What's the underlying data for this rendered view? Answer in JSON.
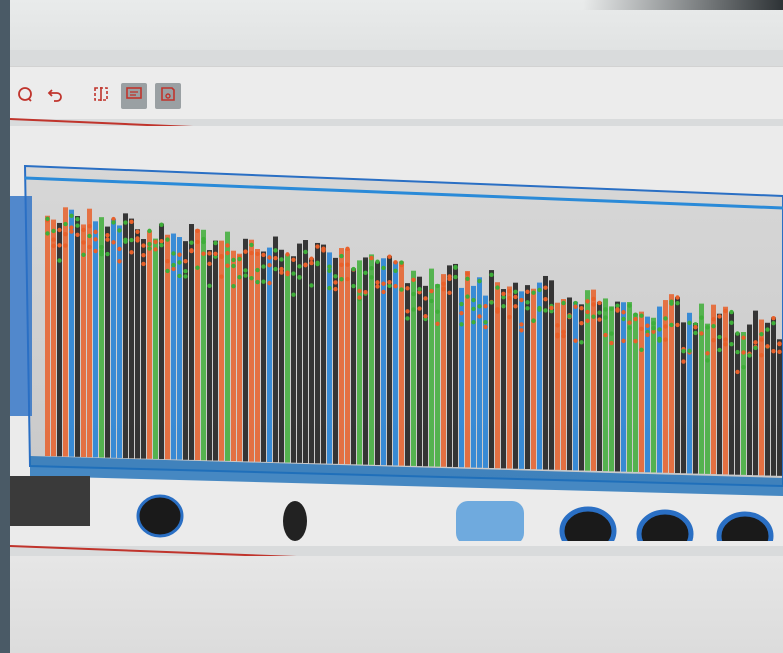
{
  "toolbar": {
    "buttons": [
      {
        "name": "refresh",
        "icon": "refresh-icon"
      },
      {
        "name": "undo",
        "icon": "undo-icon"
      },
      {
        "name": "compare",
        "icon": "split-view-icon"
      },
      {
        "name": "comment",
        "icon": "comment-icon",
        "active": true
      },
      {
        "name": "save",
        "icon": "save-icon",
        "active": true
      }
    ]
  },
  "colors": {
    "accent_line": "#c0342c",
    "xray_organic": "#e8602a",
    "xray_mixed": "#3fae3a",
    "xray_metal": "#1f7fd6",
    "xray_dense": "#1a1a1a"
  },
  "image": {
    "subject": "x-ray-scan-of-truck-trailer"
  }
}
